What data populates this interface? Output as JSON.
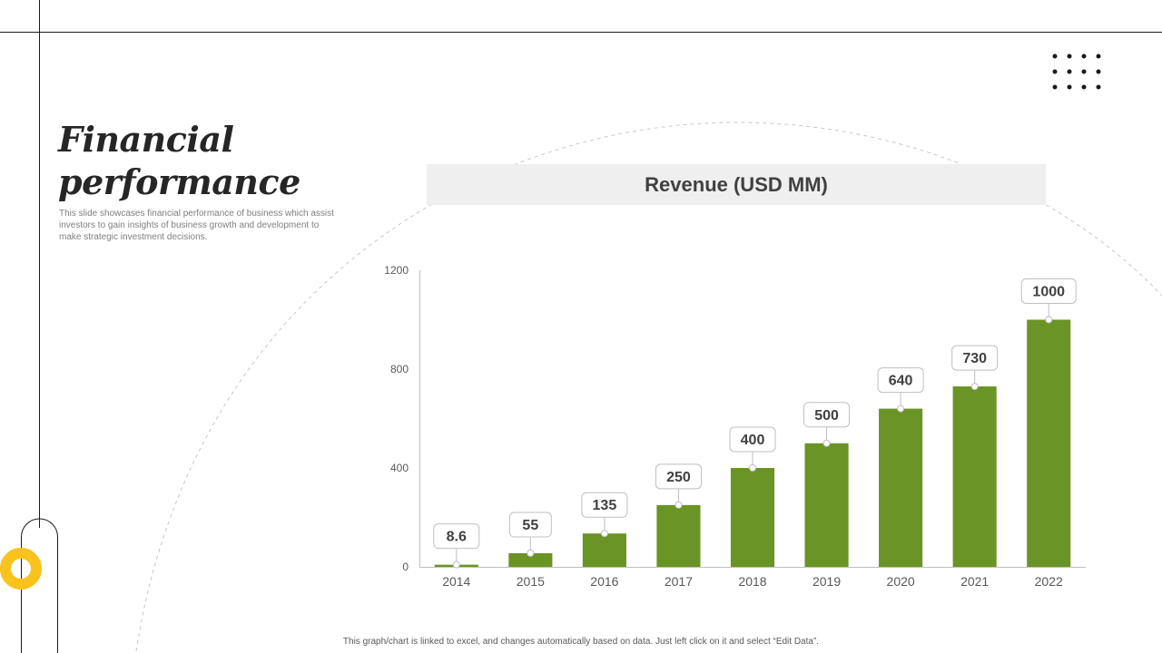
{
  "slide": {
    "title": "Financial\nperformance",
    "description": "This slide showcases financial performance of business which assist investors to gain insights of business growth and development to make  strategic investment decisions.",
    "footer_note": "This graph/chart is linked to excel, and changes automatically based on data. Just left click on it and select “Edit Data”."
  },
  "colors": {
    "bar": "#6a9425",
    "accent_ring": "#f9c21d",
    "text_dark": "#262626",
    "axis": "#bfbfbf"
  },
  "chart_data": {
    "type": "bar",
    "title": "Revenue (USD MM)",
    "categories": [
      "2014",
      "2015",
      "2016",
      "2017",
      "2018",
      "2019",
      "2020",
      "2021",
      "2022"
    ],
    "values": [
      8.6,
      55,
      135,
      250,
      400,
      500,
      640,
      730,
      1000
    ],
    "data_labels": [
      "8.6",
      "55",
      "135",
      "250",
      "400",
      "500",
      "640",
      "730",
      "1000"
    ],
    "ylim": [
      0,
      1200
    ],
    "yticks": [
      0,
      400,
      800,
      1200
    ],
    "ytick_labels": [
      "0",
      "400",
      "800",
      "1200"
    ],
    "xlabel": "",
    "ylabel": "",
    "grid": false,
    "legend": "none"
  }
}
